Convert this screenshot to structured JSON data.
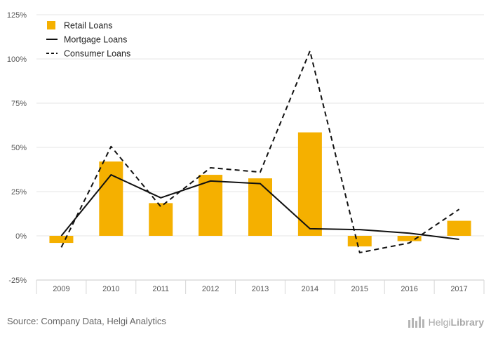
{
  "chart_data": {
    "type": "bar+line",
    "categories": [
      "2009",
      "2010",
      "2011",
      "2012",
      "2013",
      "2014",
      "2015",
      "2016",
      "2017"
    ],
    "ylim": [
      -25,
      125
    ],
    "yticks": [
      -25,
      0,
      25,
      50,
      75,
      100,
      125
    ],
    "ytick_labels": [
      "-25%",
      "0%",
      "25%",
      "50%",
      "75%",
      "100%",
      "125%"
    ],
    "grid": "horizontal",
    "legend_position": "top-left",
    "series": [
      {
        "name": "Retail Loans",
        "kind": "bar",
        "color": "#f5b000",
        "values": [
          -4,
          42,
          18.5,
          34.5,
          32.5,
          58.5,
          -6,
          -3,
          8.5
        ]
      },
      {
        "name": "Mortgage Loans",
        "kind": "line",
        "style": "solid",
        "color": "#111111",
        "values": [
          0,
          34.5,
          21.5,
          31,
          29.5,
          4,
          3.5,
          1.5,
          -2
        ]
      },
      {
        "name": "Consumer Loans",
        "kind": "line",
        "style": "dashed",
        "color": "#111111",
        "values": [
          -6.5,
          50.5,
          16.5,
          38.5,
          36,
          104.5,
          -9.5,
          -4,
          15
        ]
      }
    ]
  },
  "footer": {
    "source": "Source: Company Data, Helgi Analytics",
    "brand_regular": "Helgi",
    "brand_bold": "Library"
  },
  "icons": {
    "brand": "building-icon"
  }
}
